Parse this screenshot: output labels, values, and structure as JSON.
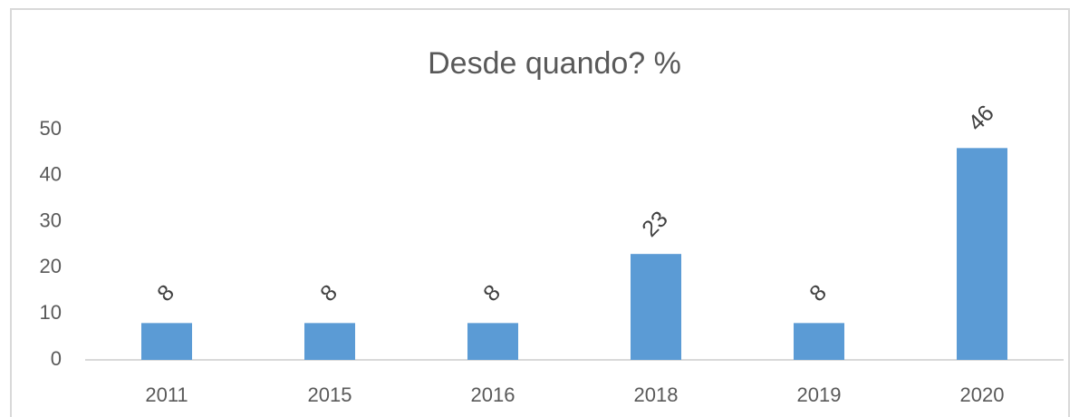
{
  "chart_data": {
    "type": "bar",
    "title": "Desde quando? %",
    "categories": [
      "2011",
      "2015",
      "2016",
      "2018",
      "2019",
      "2020"
    ],
    "values": [
      8,
      8,
      8,
      23,
      8,
      46
    ],
    "color": "#5b9bd5",
    "ylim": [
      0,
      50
    ],
    "yticks": [
      0,
      10,
      20,
      30,
      40,
      50
    ],
    "grid": false
  }
}
